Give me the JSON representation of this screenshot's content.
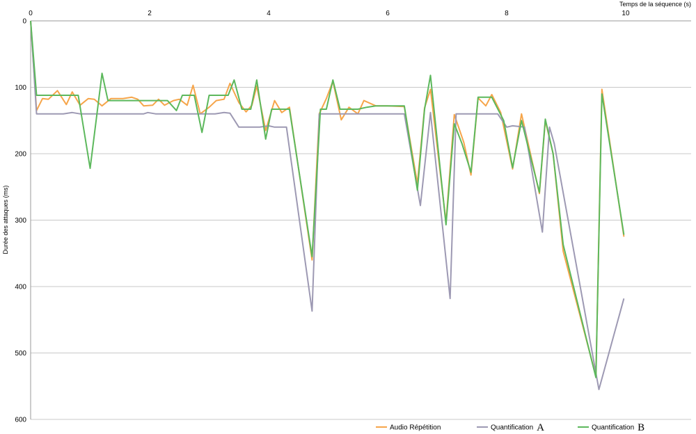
{
  "chart_data": {
    "type": "line",
    "title": "",
    "xlabel": "Temps de la séquence (s)",
    "ylabel": "Durée des attaques (ms)",
    "xlim": [
      0,
      11.1
    ],
    "ylim": [
      0,
      600
    ],
    "y_inverted": true,
    "x_axis_position": "top",
    "x_ticks": [
      0,
      2,
      4,
      6,
      8,
      10
    ],
    "y_ticks": [
      0,
      100,
      200,
      300,
      400,
      500,
      600
    ],
    "grid": "horizontal",
    "legend": "bottom",
    "series": [
      {
        "name": "Audio Répétition",
        "name_suffix": "",
        "color": "#f6a54a",
        "points": [
          [
            0,
            0
          ],
          [
            0.1,
            135
          ],
          [
            0.2,
            117
          ],
          [
            0.3,
            118
          ],
          [
            0.45,
            105
          ],
          [
            0.6,
            126
          ],
          [
            0.7,
            107
          ],
          [
            0.83,
            127
          ],
          [
            0.97,
            117
          ],
          [
            1.07,
            118
          ],
          [
            1.2,
            128
          ],
          [
            1.35,
            117
          ],
          [
            1.55,
            117
          ],
          [
            1.7,
            115
          ],
          [
            1.8,
            118
          ],
          [
            1.9,
            128
          ],
          [
            2.05,
            127
          ],
          [
            2.15,
            118
          ],
          [
            2.25,
            127
          ],
          [
            2.4,
            120
          ],
          [
            2.5,
            118
          ],
          [
            2.63,
            127
          ],
          [
            2.73,
            97
          ],
          [
            2.85,
            140
          ],
          [
            3.0,
            130
          ],
          [
            3.12,
            120
          ],
          [
            3.25,
            118
          ],
          [
            3.35,
            94
          ],
          [
            3.5,
            123
          ],
          [
            3.62,
            137
          ],
          [
            3.72,
            127
          ],
          [
            3.8,
            98
          ],
          [
            3.95,
            165
          ],
          [
            4.1,
            120
          ],
          [
            4.22,
            138
          ],
          [
            4.35,
            130
          ],
          [
            4.73,
            360
          ],
          [
            4.85,
            140
          ],
          [
            4.97,
            117
          ],
          [
            5.08,
            91
          ],
          [
            5.22,
            149
          ],
          [
            5.35,
            130
          ],
          [
            5.5,
            140
          ],
          [
            5.6,
            120
          ],
          [
            5.8,
            128
          ],
          [
            6.0,
            128
          ],
          [
            6.28,
            129
          ],
          [
            6.5,
            245
          ],
          [
            6.62,
            131
          ],
          [
            6.72,
            103
          ],
          [
            6.98,
            303
          ],
          [
            7.12,
            141
          ],
          [
            7.28,
            183
          ],
          [
            7.4,
            232
          ],
          [
            7.52,
            116
          ],
          [
            7.65,
            128
          ],
          [
            7.75,
            111
          ],
          [
            7.9,
            138
          ],
          [
            8.1,
            223
          ],
          [
            8.25,
            140
          ],
          [
            8.55,
            260
          ],
          [
            8.65,
            150
          ],
          [
            8.78,
            200
          ],
          [
            8.95,
            347
          ],
          [
            9.5,
            535
          ],
          [
            9.6,
            103
          ],
          [
            9.97,
            325
          ]
        ]
      },
      {
        "name": "Quantification",
        "name_suffix": "A",
        "color": "#9d99b3",
        "points": [
          [
            0,
            0
          ],
          [
            0.1,
            140
          ],
          [
            0.3,
            140
          ],
          [
            0.55,
            140
          ],
          [
            0.7,
            138
          ],
          [
            0.83,
            140
          ],
          [
            1.2,
            140
          ],
          [
            1.9,
            140
          ],
          [
            1.97,
            138
          ],
          [
            2.1,
            140
          ],
          [
            2.8,
            140
          ],
          [
            3.1,
            140
          ],
          [
            3.25,
            138
          ],
          [
            3.35,
            139
          ],
          [
            3.5,
            160
          ],
          [
            3.85,
            160
          ],
          [
            4.0,
            158
          ],
          [
            4.1,
            160
          ],
          [
            4.3,
            160
          ],
          [
            4.73,
            437
          ],
          [
            4.85,
            140
          ],
          [
            5.2,
            140
          ],
          [
            5.6,
            140
          ],
          [
            6.0,
            140
          ],
          [
            6.28,
            140
          ],
          [
            6.55,
            278
          ],
          [
            6.72,
            138
          ],
          [
            7.05,
            418
          ],
          [
            7.15,
            140
          ],
          [
            7.25,
            140
          ],
          [
            7.5,
            140
          ],
          [
            7.85,
            140
          ],
          [
            8.0,
            160
          ],
          [
            8.1,
            158
          ],
          [
            8.3,
            160
          ],
          [
            8.6,
            318
          ],
          [
            8.72,
            160
          ],
          [
            8.8,
            185
          ],
          [
            9.55,
            555
          ],
          [
            9.97,
            418
          ]
        ]
      },
      {
        "name": "Quantification",
        "name_suffix": "B",
        "color": "#5cb85c",
        "points": [
          [
            0,
            0
          ],
          [
            0.1,
            112
          ],
          [
            0.3,
            112
          ],
          [
            0.55,
            112
          ],
          [
            0.8,
            112
          ],
          [
            1.0,
            222
          ],
          [
            1.2,
            79
          ],
          [
            1.3,
            120
          ],
          [
            1.5,
            120
          ],
          [
            1.8,
            120
          ],
          [
            2.1,
            120
          ],
          [
            2.3,
            120
          ],
          [
            2.45,
            135
          ],
          [
            2.55,
            112
          ],
          [
            2.75,
            112
          ],
          [
            2.88,
            168
          ],
          [
            3.0,
            112
          ],
          [
            3.2,
            112
          ],
          [
            3.32,
            112
          ],
          [
            3.42,
            89
          ],
          [
            3.55,
            133
          ],
          [
            3.7,
            133
          ],
          [
            3.8,
            89
          ],
          [
            3.95,
            178
          ],
          [
            4.05,
            133
          ],
          [
            4.35,
            133
          ],
          [
            4.73,
            355
          ],
          [
            4.87,
            133
          ],
          [
            4.97,
            133
          ],
          [
            5.08,
            89
          ],
          [
            5.2,
            133
          ],
          [
            5.5,
            133
          ],
          [
            5.65,
            130
          ],
          [
            5.8,
            128
          ],
          [
            6.28,
            128
          ],
          [
            6.5,
            255
          ],
          [
            6.62,
            133
          ],
          [
            6.72,
            82
          ],
          [
            6.98,
            307
          ],
          [
            7.12,
            155
          ],
          [
            7.25,
            185
          ],
          [
            7.4,
            228
          ],
          [
            7.52,
            115
          ],
          [
            7.75,
            115
          ],
          [
            7.95,
            150
          ],
          [
            8.1,
            221
          ],
          [
            8.25,
            150
          ],
          [
            8.55,
            258
          ],
          [
            8.65,
            148
          ],
          [
            8.78,
            200
          ],
          [
            8.95,
            337
          ],
          [
            9.5,
            537
          ],
          [
            9.6,
            110
          ],
          [
            9.97,
            322
          ]
        ]
      }
    ]
  }
}
